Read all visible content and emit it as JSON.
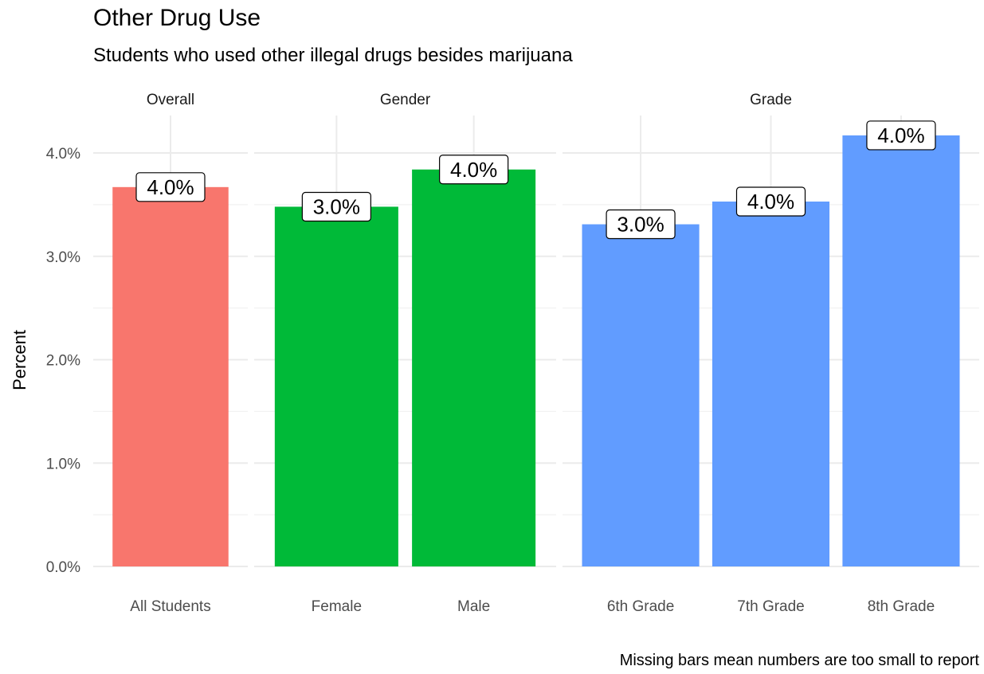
{
  "chart_data": {
    "type": "bar",
    "title": "Other Drug Use",
    "subtitle": "Students who used other illegal drugs besides marijuana",
    "ylabel": "Percent",
    "xlabel": "",
    "caption": "Missing bars mean numbers are too small to report",
    "ylim": [
      0,
      4.3
    ],
    "y_ticks": [
      0,
      1,
      2,
      3,
      4
    ],
    "y_tick_labels": [
      "0.0%",
      "1.0%",
      "2.0%",
      "3.0%",
      "4.0%"
    ],
    "grid": true,
    "legend": "none",
    "facets": [
      {
        "name": "Overall",
        "color": "#F8766D",
        "categories": [
          "All Students"
        ],
        "values": [
          3.67
        ],
        "labels": [
          "4.0%"
        ]
      },
      {
        "name": "Gender",
        "color": "#00BA38",
        "categories": [
          "Female",
          "Male"
        ],
        "values": [
          3.48,
          3.84
        ],
        "labels": [
          "3.0%",
          "4.0%"
        ]
      },
      {
        "name": "Grade",
        "color": "#619CFF",
        "categories": [
          "6th Grade",
          "7th Grade",
          "8th Grade"
        ],
        "values": [
          3.31,
          3.53,
          4.17
        ],
        "labels": [
          "3.0%",
          "4.0%",
          "4.0%"
        ]
      }
    ]
  }
}
